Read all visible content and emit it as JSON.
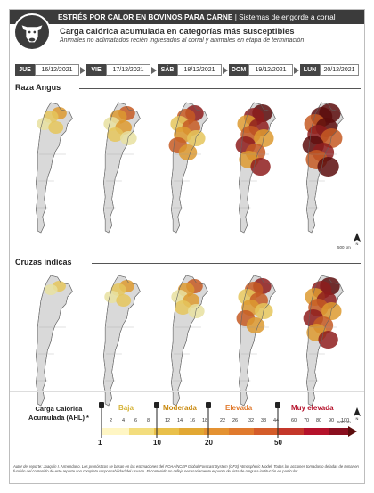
{
  "header": {
    "title_main": "ESTRÉS POR CALOR EN BOVINOS PARA CARNE",
    "title_sep": " | ",
    "title_sub": "Sistemas de engorde a corral",
    "subtitle": "Carga calórica acumulada en categorías más susceptibles",
    "note": "Animales no aclimatados recién ingresados al corral y animales en etapa de terminación"
  },
  "dates": [
    {
      "day": "JUE",
      "date": "16/12/2021"
    },
    {
      "day": "VIE",
      "date": "17/12/2021"
    },
    {
      "day": "SÁB",
      "date": "18/12/2021"
    },
    {
      "day": "DOM",
      "date": "19/12/2021"
    },
    {
      "day": "LUN",
      "date": "20/12/2021"
    }
  ],
  "sections": [
    {
      "title": "Raza Angus",
      "levels": [
        1,
        2,
        3,
        4,
        5
      ]
    },
    {
      "title": "Cruzas índicas",
      "levels": [
        0,
        1,
        2,
        3,
        4
      ]
    }
  ],
  "scale_label": "500 km",
  "legend": {
    "label": "Carga Calórica Acumulada (AHL) *",
    "categories": [
      {
        "name": "Baja",
        "color": "#e0c35a"
      },
      {
        "name": "Moderada",
        "color": "#d79a1a"
      },
      {
        "name": "Elevada",
        "color": "#e0772c"
      },
      {
        "name": "Muy elevada",
        "color": "#b5122b"
      }
    ],
    "ticks": [
      "2",
      "4",
      "6",
      "8",
      "12",
      "14",
      "16",
      "18",
      "22",
      "26",
      "32",
      "38",
      "44",
      "60",
      "70",
      "80",
      "90",
      "100"
    ],
    "thresholds": [
      "1",
      "10",
      "20",
      "50"
    ]
  },
  "footer": "Autor del reporte: Joaquín I. Armendano. Los pronósticos se basan en las estimaciones del NOAA/NCEP Global Forecast System (GFS) Atmospheric Model. Todas las acciones tomadas o dejadas de tomar en función del contenido de este reporte son completa responsabilidad del usuario. El contenido no refleja necesariamente el punto de vista de ninguna institución en particular."
}
